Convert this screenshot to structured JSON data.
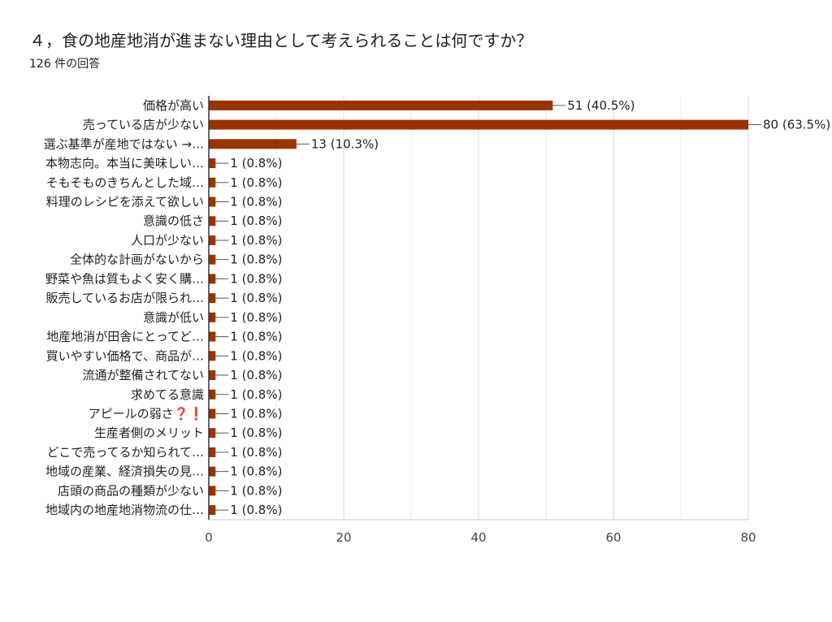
{
  "header": {
    "title": "４，食の地産地消が進まない理由として考えられることは何ですか？",
    "subtitle": "126 件の回答"
  },
  "chart_data": {
    "type": "bar",
    "orientation": "horizontal",
    "title": "４，食の地産地消が進まない理由として考えられることは何ですか？",
    "subtitle": "126 件の回答",
    "categories": [
      "価格が高い",
      "売っている店が少ない",
      "選ぶ基準が産地ではない →…",
      "本物志向。本当に美味しい…",
      "そもそものきちんとした域…",
      "料理のレシピを添えて欲しい",
      "意識の低さ",
      "人口が少ない",
      "全体的な計画がないから",
      "野菜や魚は質もよく安く購…",
      "販売しているお店が限られ…",
      "意識が低い",
      "地産地消が田舎にとってど…",
      "買いやすい価格で、商品が…",
      "流通が整備されてない",
      "求めてる意識",
      "アピールの弱さ❓❗",
      "生産者側のメリット",
      "どこで売ってるか知られて…",
      "地域の産業、経済損失の見…",
      "店頭の商品の種類が少ない",
      "地域内の地産地消物流の仕…"
    ],
    "values": [
      51,
      80,
      13,
      1,
      1,
      1,
      1,
      1,
      1,
      1,
      1,
      1,
      1,
      1,
      1,
      1,
      1,
      1,
      1,
      1,
      1,
      1
    ],
    "value_labels": [
      "51 (40.5%)",
      "80 (63.5%)",
      "13 (10.3%)",
      "1 (0.8%)",
      "1 (0.8%)",
      "1 (0.8%)",
      "1 (0.8%)",
      "1 (0.8%)",
      "1 (0.8%)",
      "1 (0.8%)",
      "1 (0.8%)",
      "1 (0.8%)",
      "1 (0.8%)",
      "1 (0.8%)",
      "1 (0.8%)",
      "1 (0.8%)",
      "1 (0.8%)",
      "1 (0.8%)",
      "1 (0.8%)",
      "1 (0.8%)",
      "1 (0.8%)",
      "1 (0.8%)"
    ],
    "xlim": [
      0,
      80
    ],
    "xticks": [
      "0",
      "20",
      "40",
      "60",
      "80"
    ],
    "grid": true,
    "bar_color": "#993300"
  }
}
